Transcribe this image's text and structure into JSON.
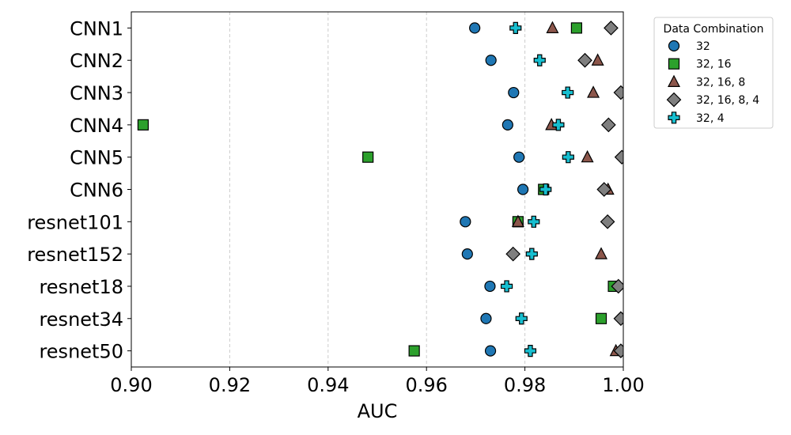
{
  "chart_data": {
    "type": "scatter",
    "orientation": "horizontal",
    "xlabel": "AUC",
    "ylabel": "",
    "title": "",
    "xlim": [
      0.9,
      1.0
    ],
    "xticks": [
      "0.90",
      "0.92",
      "0.94",
      "0.96",
      "0.98",
      "1.00"
    ],
    "grid": "vertical dashed",
    "legend_placement": "outside-right",
    "legend_title": "Data Combination",
    "categories": [
      "CNN1",
      "CNN2",
      "CNN3",
      "CNN4",
      "CNN5",
      "CNN6",
      "resnet101",
      "resnet152",
      "resnet18",
      "resnet34",
      "resnet50"
    ],
    "series": [
      {
        "name": "32",
        "marker": "circle",
        "color": "#1f77b4",
        "values": [
          0.9698,
          0.9731,
          0.9777,
          0.9765,
          0.9788,
          0.9796,
          0.9679,
          0.9683,
          0.9729,
          0.9721,
          0.973
        ]
      },
      {
        "name": "32, 16",
        "marker": "square",
        "color": "#2ca02c",
        "values": [
          0.9905,
          null,
          null,
          0.9024,
          0.9481,
          0.9838,
          0.9786,
          null,
          0.998,
          0.9955,
          0.9575
        ]
      },
      {
        "name": "32, 16, 8",
        "marker": "triangle",
        "color": "#8c564b",
        "values": [
          0.9856,
          0.9948,
          0.9939,
          0.9854,
          0.9927,
          0.9969,
          0.9786,
          0.9955,
          null,
          null,
          0.9985
        ]
      },
      {
        "name": "32, 16, 8, 4",
        "marker": "diamond",
        "color": "#7f7f7f",
        "values": [
          0.9975,
          0.9922,
          0.9995,
          0.997,
          0.9997,
          0.9961,
          0.9968,
          0.9776,
          0.999,
          0.9995,
          0.9995
        ]
      },
      {
        "name": "32, 4",
        "marker": "plus",
        "color": "#17becf",
        "values": [
          0.9781,
          0.983,
          0.9887,
          0.9868,
          0.9888,
          0.9842,
          0.9818,
          0.9814,
          0.9763,
          0.9793,
          0.9811
        ]
      }
    ]
  }
}
